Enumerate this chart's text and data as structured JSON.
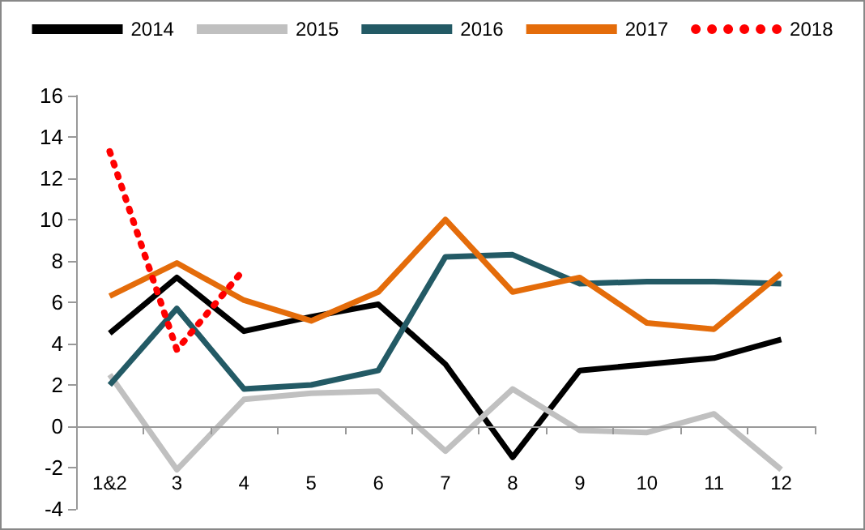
{
  "chart_data": {
    "type": "line",
    "categories": [
      "1&2",
      "3",
      "4",
      "5",
      "6",
      "7",
      "8",
      "9",
      "10",
      "11",
      "12"
    ],
    "series": [
      {
        "name": "2014",
        "color": "#000000",
        "values": [
          4.5,
          7.2,
          4.6,
          5.3,
          5.9,
          3.0,
          -1.5,
          2.7,
          3.0,
          3.3,
          4.2
        ]
      },
      {
        "name": "2015",
        "color": "#c0c0c0",
        "values": [
          2.5,
          -2.1,
          1.3,
          1.6,
          1.7,
          -1.2,
          1.8,
          -0.2,
          -0.3,
          0.6,
          -2.1
        ]
      },
      {
        "name": "2016",
        "color": "#235a65",
        "values": [
          2.0,
          5.7,
          1.8,
          2.0,
          2.7,
          8.2,
          8.3,
          6.9,
          7.0,
          7.0,
          6.9
        ]
      },
      {
        "name": "2017",
        "color": "#e46c0a",
        "values": [
          6.3,
          7.9,
          6.1,
          5.1,
          6.5,
          10.0,
          6.5,
          7.2,
          5.0,
          4.7,
          7.4
        ]
      },
      {
        "name": "2018",
        "color": "#ff0000",
        "line_style": "dotted",
        "values": [
          13.3,
          3.7,
          7.6,
          null,
          null,
          null,
          null,
          null,
          null,
          null,
          null
        ]
      }
    ],
    "ylim": [
      -4,
      16
    ],
    "yticks": [
      -4,
      -2,
      0,
      2,
      4,
      6,
      8,
      10,
      12,
      14,
      16
    ],
    "legend": "top",
    "marker": "none",
    "line_style": "solid"
  }
}
